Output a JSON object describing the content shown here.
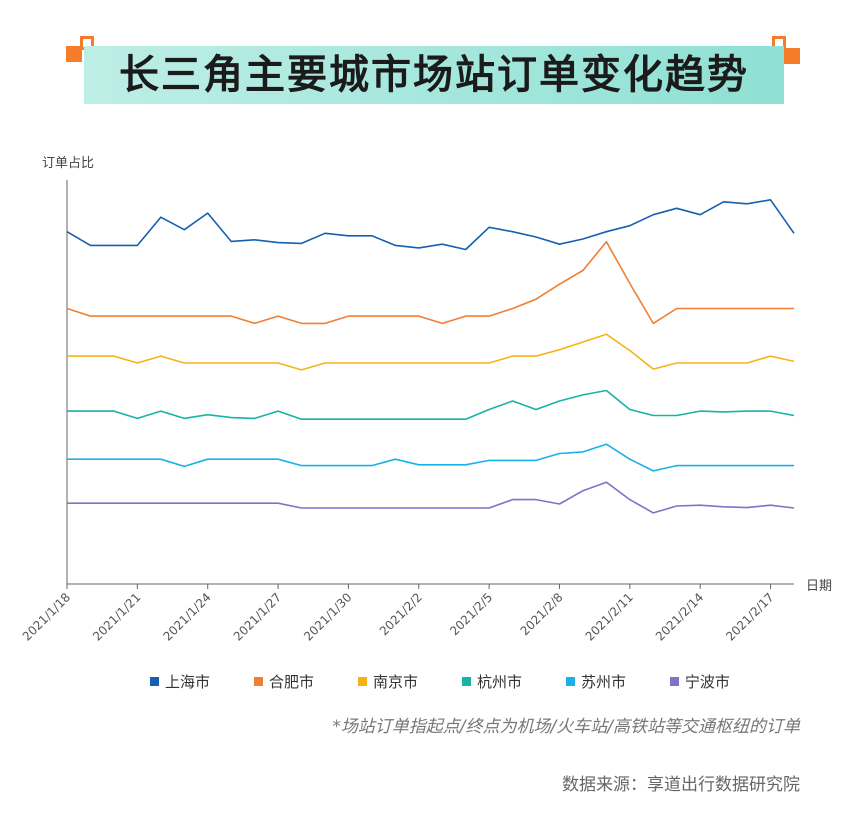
{
  "header": {
    "title": "长三角主要城市场站订单变化趋势"
  },
  "colors": {
    "accent": "#f47c2a",
    "title_bg": "#8fe0d4"
  },
  "chart_data": {
    "type": "line",
    "ylabel": "订单占比",
    "xlabel": "日期",
    "grid": false,
    "y_ticks_shown": false,
    "legend_position": "bottom",
    "x": [
      "2021/1/18",
      "2021/1/19",
      "2021/1/20",
      "2021/1/21",
      "2021/1/22",
      "2021/1/23",
      "2021/1/24",
      "2021/1/25",
      "2021/1/26",
      "2021/1/27",
      "2021/1/28",
      "2021/1/29",
      "2021/1/30",
      "2021/1/31",
      "2021/2/1",
      "2021/2/2",
      "2021/2/3",
      "2021/2/4",
      "2021/2/5",
      "2021/2/6",
      "2021/2/7",
      "2021/2/8",
      "2021/2/9",
      "2021/2/10",
      "2021/2/11",
      "2021/2/12",
      "2021/2/13",
      "2021/2/14",
      "2021/2/15",
      "2021/2/16",
      "2021/2/17",
      "2021/2/18"
    ],
    "x_tick_labels": [
      "2021/1/18",
      "2021/1/21",
      "2021/1/24",
      "2021/1/27",
      "2021/1/30",
      "2021/2/2",
      "2021/2/5",
      "2021/2/8",
      "2021/2/11",
      "2021/2/14",
      "2021/2/17"
    ],
    "ylim": [
      0,
      100
    ],
    "series": [
      {
        "name": "上海市",
        "color": "#1560b0",
        "values": [
          87.2,
          83.8,
          83.8,
          83.8,
          90.8,
          87.7,
          91.8,
          84.8,
          85.2,
          84.5,
          84.3,
          86.8,
          86.2,
          86.2,
          83.8,
          83.2,
          84.1,
          82.8,
          88.3,
          87.2,
          85.9,
          84.1,
          85.4,
          87.2,
          88.7,
          91.4,
          93.0,
          91.4,
          94.6,
          94.1,
          95.1,
          86.8
        ]
      },
      {
        "name": "合肥市",
        "color": "#f07f33",
        "values": [
          68.2,
          66.3,
          66.3,
          66.3,
          66.3,
          66.3,
          66.3,
          66.3,
          64.5,
          66.3,
          64.5,
          64.5,
          66.3,
          66.3,
          66.3,
          66.3,
          64.5,
          66.3,
          66.3,
          68.2,
          70.5,
          74.2,
          77.6,
          84.7,
          74.4,
          64.5,
          68.2,
          68.2,
          68.2,
          68.2,
          68.2,
          68.2
        ]
      },
      {
        "name": "南京市",
        "color": "#f5b316",
        "values": [
          56.4,
          56.4,
          56.4,
          54.7,
          56.4,
          54.7,
          54.7,
          54.7,
          54.7,
          54.7,
          53.0,
          54.7,
          54.7,
          54.7,
          54.7,
          54.7,
          54.7,
          54.7,
          54.7,
          56.4,
          56.4,
          58.0,
          59.9,
          61.8,
          57.8,
          53.2,
          54.7,
          54.7,
          54.7,
          54.7,
          56.4,
          55.1
        ]
      },
      {
        "name": "杭州市",
        "color": "#16b3a6",
        "values": [
          42.8,
          42.8,
          42.8,
          41.0,
          42.8,
          41.0,
          41.9,
          41.2,
          41.0,
          42.8,
          40.8,
          40.8,
          40.8,
          40.8,
          40.8,
          40.8,
          40.8,
          40.8,
          43.2,
          45.3,
          43.2,
          45.3,
          46.8,
          47.9,
          43.2,
          41.7,
          41.7,
          42.8,
          42.6,
          42.8,
          42.8,
          41.7
        ]
      },
      {
        "name": "苏州市",
        "color": "#1ab0e8",
        "values": [
          30.9,
          30.9,
          30.9,
          30.9,
          30.9,
          29.1,
          30.9,
          30.9,
          30.9,
          30.9,
          29.3,
          29.3,
          29.3,
          29.3,
          30.9,
          29.5,
          29.5,
          29.5,
          30.6,
          30.6,
          30.6,
          32.3,
          32.7,
          34.6,
          30.9,
          28.0,
          29.3,
          29.3,
          29.3,
          29.3,
          29.3,
          29.3
        ]
      },
      {
        "name": "宁波市",
        "color": "#8470c8",
        "values": [
          20.0,
          20.0,
          20.0,
          20.0,
          20.0,
          20.0,
          20.0,
          20.0,
          20.0,
          20.0,
          18.8,
          18.8,
          18.8,
          18.8,
          18.8,
          18.8,
          18.8,
          18.8,
          18.8,
          20.9,
          20.9,
          19.8,
          23.1,
          25.2,
          20.9,
          17.6,
          19.3,
          19.5,
          19.1,
          18.9,
          19.5,
          18.8
        ]
      }
    ]
  },
  "footer": {
    "note": "*场站订单指起点/终点为机场/火车站/高铁站等交通枢纽的订单",
    "source": "数据来源：享道出行数据研究院"
  }
}
